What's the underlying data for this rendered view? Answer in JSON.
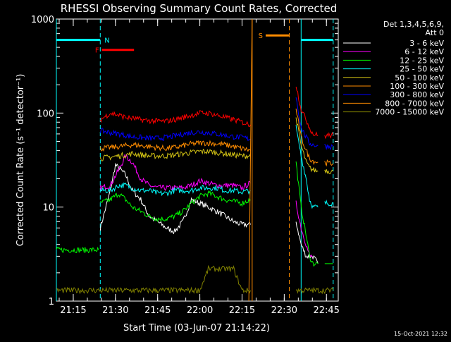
{
  "chart_data": {
    "type": "line",
    "title": "RHESSI Observing Summary Count Rates, Corrected",
    "xlabel": "Start Time (03-Jun-07 21:14:22)",
    "ylabel": "Corrected Count Rate (s⁻¹ detector⁻¹)",
    "timestamp": "15-Oct-2021 12:32",
    "y_scale": "log",
    "ylim": [
      1,
      1000
    ],
    "xlim_minutes": [
      21.15,
      22.82
    ],
    "y_ticks": [
      {
        "value": 1,
        "label": "1"
      },
      {
        "value": 10,
        "label": "10"
      },
      {
        "value": 100,
        "label": "100"
      },
      {
        "value": 1000,
        "label": "1000"
      }
    ],
    "x_ticks": [
      {
        "value": 21.25,
        "label": "21:15"
      },
      {
        "value": 21.5,
        "label": "21:30"
      },
      {
        "value": 21.75,
        "label": "21:45"
      },
      {
        "value": 22.0,
        "label": "22:00"
      },
      {
        "value": 22.25,
        "label": "22:15"
      },
      {
        "value": 22.5,
        "label": "22:30"
      },
      {
        "value": 22.75,
        "label": "22:45"
      }
    ],
    "legend": {
      "placement": "right",
      "header": [
        "Det 1,3,4,5,6,9,",
        "Att 0"
      ]
    },
    "series": [
      {
        "name": "3 - 6 keV",
        "color": "#ffffff",
        "segments": [
          {
            "t": [
              21.41,
              21.47,
              21.5,
              21.53,
              21.56,
              21.6,
              21.65,
              21.7,
              21.75,
              21.8,
              21.85,
              21.9,
              21.95,
              22.0,
              22.05,
              22.1,
              22.15,
              22.2,
              22.25,
              22.3
            ],
            "y": [
              6,
              15,
              28,
              25,
              22,
              15,
              12,
              8,
              7,
              6,
              5.5,
              7,
              12,
              11,
              10,
              9,
              8,
              7,
              6.5,
              6.5
            ]
          },
          {
            "t": [
              22.57,
              22.6,
              22.63,
              22.65,
              22.67,
              22.7
            ],
            "y": [
              7,
              4,
              3,
              3,
              3,
              2.5
            ]
          }
        ]
      },
      {
        "name": "6 - 12 keV",
        "color": "#ff00ff",
        "segments": [
          {
            "t": [
              21.41,
              21.47,
              21.52,
              21.56,
              21.6,
              21.65,
              21.7,
              21.75,
              21.8,
              21.85,
              21.9,
              21.95,
              22.0,
              22.05,
              22.1,
              22.15,
              22.2,
              22.25,
              22.3
            ],
            "y": [
              16,
              17,
              25,
              35,
              30,
              20,
              17,
              16,
              16,
              16,
              16,
              17,
              19,
              18,
              17,
              17,
              17,
              16,
              18
            ]
          },
          {
            "t": [
              22.57,
              22.6,
              22.63,
              22.65,
              22.67
            ],
            "y": [
              11,
              6,
              4,
              3,
              3
            ]
          }
        ]
      },
      {
        "name": "12 - 25 keV",
        "color": "#00ff00",
        "segments": [
          {
            "t": [
              21.15,
              21.25,
              21.35,
              21.4
            ],
            "y": [
              3.5,
              3.5,
              3.5,
              3.5
            ]
          },
          {
            "t": [
              21.41,
              21.47,
              21.52,
              21.56,
              21.6,
              21.65,
              21.7,
              21.75,
              21.8,
              21.85,
              21.9,
              21.95,
              22.0,
              22.05,
              22.1,
              22.15,
              22.2,
              22.25,
              22.3
            ],
            "y": [
              11,
              12,
              14,
              12,
              10,
              9,
              8,
              7.5,
              7.5,
              8,
              9,
              11,
              13,
              14,
              13,
              12,
              11.5,
              11,
              12
            ]
          },
          {
            "t": [
              22.57,
              22.6,
              22.63,
              22.65,
              22.67,
              22.7
            ],
            "y": [
              30,
              10,
              5,
              3,
              2.5,
              2.5
            ]
          },
          {
            "t": [
              22.74,
              22.79
            ],
            "y": [
              2.5,
              2.5
            ]
          }
        ]
      },
      {
        "name": "25 - 50 keV",
        "color": "#00ffff",
        "segments": [
          {
            "t": [
              21.41,
              21.47,
              21.52,
              21.56,
              21.6,
              21.65,
              21.7,
              21.75,
              21.8,
              21.85,
              21.9,
              21.95,
              22.0,
              22.05,
              22.1,
              22.15,
              22.2,
              22.25,
              22.3
            ],
            "y": [
              15,
              15,
              17,
              17,
              16,
              15,
              15,
              14,
              14,
              15,
              15,
              15,
              16,
              16,
              16,
              15,
              15,
              14.5,
              15
            ]
          },
          {
            "t": [
              22.57,
              22.6,
              22.63,
              22.65,
              22.67,
              22.7
            ],
            "y": [
              70,
              35,
              20,
              12,
              10,
              10
            ]
          },
          {
            "t": [
              22.74,
              22.77,
              22.79
            ],
            "y": [
              11,
              11,
              11
            ]
          }
        ]
      },
      {
        "name": "50 - 100 keV",
        "color": "#d4c414",
        "segments": [
          {
            "t": [
              21.41,
              21.47,
              21.52,
              21.56,
              21.6,
              21.65,
              21.7,
              21.75,
              21.8,
              21.85,
              21.9,
              21.95,
              22.0,
              22.05,
              22.1,
              22.15,
              22.2,
              22.25,
              22.3
            ],
            "y": [
              33,
              34,
              35,
              36,
              37,
              36,
              35,
              35,
              35,
              36,
              37,
              38,
              39,
              39,
              38,
              37,
              36,
              35,
              35
            ]
          },
          {
            "t": [
              22.57,
              22.6,
              22.63,
              22.65,
              22.67,
              22.7
            ],
            "y": [
              90,
              45,
              30,
              26,
              25,
              24
            ]
          },
          {
            "t": [
              22.74,
              22.77,
              22.79
            ],
            "y": [
              25,
              24,
              24
            ]
          }
        ]
      },
      {
        "name": "100 - 300 keV",
        "color": "#ff8c00",
        "segments": [
          {
            "t": [
              21.41,
              21.47,
              21.52,
              21.56,
              21.6,
              21.65,
              21.7,
              21.75,
              21.8,
              21.85,
              21.9,
              21.95,
              22.0,
              22.05,
              22.1,
              22.15,
              22.2,
              22.25,
              22.3
            ],
            "y": [
              42,
              43,
              44,
              45,
              46,
              45,
              44,
              43,
              42,
              43,
              45,
              47,
              48,
              48,
              47,
              46,
              44,
              42,
              40
            ]
          },
          {
            "t": [
              22.57,
              22.6,
              22.63,
              22.65,
              22.67,
              22.7
            ],
            "y": [
              110,
              55,
              40,
              33,
              31,
              30
            ]
          },
          {
            "t": [
              22.74,
              22.77,
              22.79
            ],
            "y": [
              30,
              29,
              29
            ]
          }
        ]
      },
      {
        "name": "300 - 800 keV",
        "color": "#0000ff",
        "segments": [
          {
            "t": [
              21.41,
              21.47,
              21.52,
              21.56,
              21.6,
              21.65,
              21.7,
              21.75,
              21.8,
              21.85,
              21.9,
              21.95,
              22.0,
              22.05,
              22.1,
              22.15,
              22.2,
              22.25,
              22.3
            ],
            "y": [
              65,
              62,
              60,
              58,
              56,
              55,
              54,
              54,
              55,
              57,
              60,
              62,
              63,
              62,
              60,
              58,
              56,
              55,
              53
            ]
          },
          {
            "t": [
              22.57,
              22.6,
              22.63,
              22.65,
              22.67,
              22.7
            ],
            "y": [
              150,
              70,
              55,
              48,
              46,
              45
            ]
          },
          {
            "t": [
              22.74,
              22.77,
              22.79
            ],
            "y": [
              45,
              44,
              44
            ]
          }
        ]
      },
      {
        "name": "800 - 7000 keV",
        "color": "#ff8c00",
        "segments": [
          {
            "t": [
              22.29,
              22.31
            ],
            "y": [
              1,
              1000
            ]
          }
        ]
      },
      {
        "name": "7000 - 15000 keV",
        "color": "#808000",
        "segments": [
          {
            "t": [
              21.15,
              21.3,
              21.41,
              21.5,
              21.6,
              21.7,
              21.8,
              21.9,
              22.0,
              22.05,
              22.1,
              22.15,
              22.2,
              22.25,
              22.3
            ],
            "y": [
              1.3,
              1.3,
              1.3,
              1.3,
              1.3,
              1.3,
              1.3,
              1.3,
              1.3,
              2.2,
              2.2,
              2.2,
              2.2,
              1.3,
              1.3
            ]
          },
          {
            "t": [
              22.57,
              22.63,
              22.7,
              22.75,
              22.79
            ],
            "y": [
              1.3,
              1.3,
              1.3,
              1.3,
              1.3
            ]
          }
        ]
      },
      {
        "name": "",
        "color": "#ff0000",
        "segments": [
          {
            "t": [
              21.41,
              21.47,
              21.52,
              21.56,
              21.6,
              21.65,
              21.7,
              21.75,
              21.8,
              21.85,
              21.9,
              21.95,
              22.0,
              22.05,
              22.1,
              22.15,
              22.2,
              22.25,
              22.3
            ],
            "y": [
              85,
              100,
              95,
              90,
              88,
              85,
              83,
              82,
              82,
              85,
              90,
              95,
              100,
              100,
              95,
              90,
              85,
              80,
              75
            ]
          },
          {
            "t": [
              22.57,
              22.6,
              22.63,
              22.65,
              22.67,
              22.7
            ],
            "y": [
              200,
              110,
              85,
              70,
              60,
              58
            ]
          },
          {
            "t": [
              22.74,
              22.77,
              22.79
            ],
            "y": [
              57,
              58,
              58
            ]
          }
        ]
      }
    ],
    "annotations": {
      "flags": [
        {
          "label": "N",
          "color": "#00ffff",
          "t_start": 21.15,
          "t_end": 21.41,
          "y": 600
        },
        {
          "label": "F",
          "color": "#ff0000",
          "t_start": 21.42,
          "t_end": 21.61,
          "y": 470
        },
        {
          "label": "S",
          "color": "#ff8c00",
          "t_start": 22.39,
          "t_end": 22.53,
          "y": 670
        },
        {
          "label": "",
          "color": "#00ffff",
          "t_start": 22.6,
          "t_end": 22.79,
          "y": 600
        }
      ],
      "vertical_lines": [
        {
          "t": 21.15,
          "color": "#00ffff",
          "style": "solid"
        },
        {
          "t": 21.41,
          "color": "#00ffff",
          "style": "dashed"
        },
        {
          "t": 22.31,
          "color": "#ff8c00",
          "style": "solid"
        },
        {
          "t": 22.53,
          "color": "#ff8c00",
          "style": "dashed"
        },
        {
          "t": 22.6,
          "color": "#00ffff",
          "style": "solid"
        },
        {
          "t": 22.79,
          "color": "#00ffff",
          "style": "dashed"
        }
      ]
    }
  }
}
